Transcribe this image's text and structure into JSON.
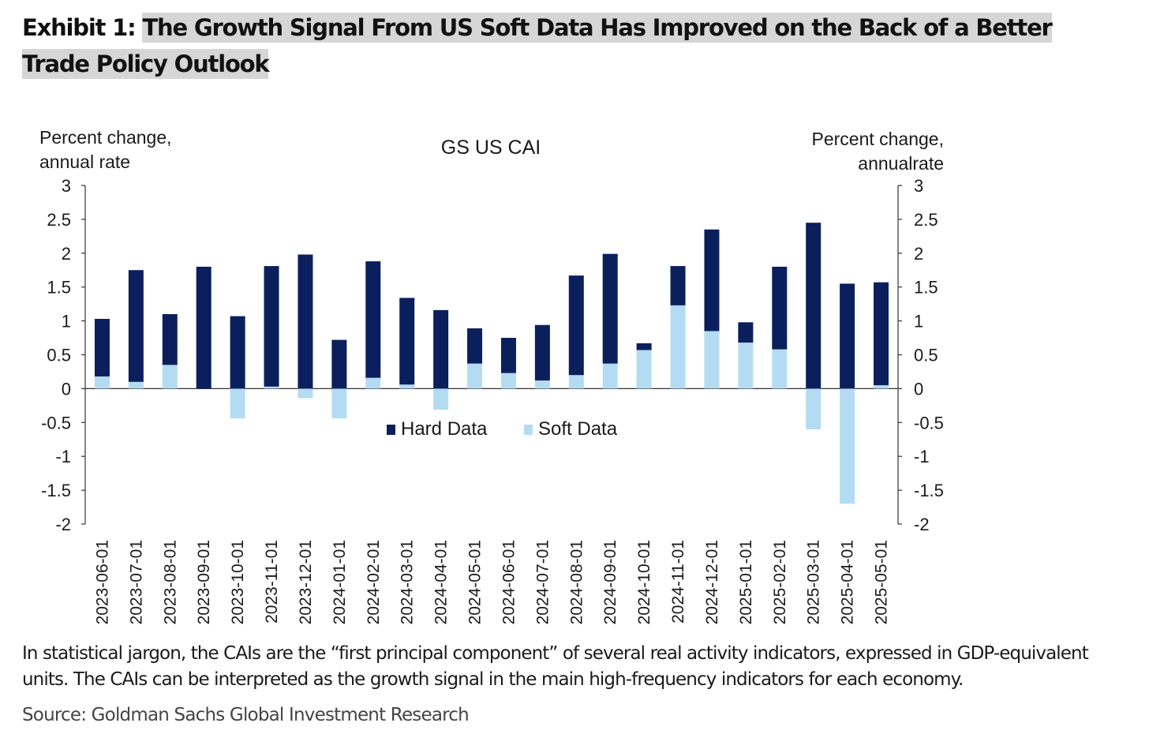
{
  "exhibit": {
    "label": "Exhibit 1:",
    "title": "The Growth Signal From US Soft Data Has Improved on the Back of a Better Trade Policy Outlook"
  },
  "chart_data": {
    "type": "bar",
    "stacked": true,
    "title": "GS US CAI",
    "ylabel_left": "Percent change, annual rate",
    "ylabel_right": "Percent change, annualrate",
    "ylim": [
      -2,
      3
    ],
    "yticks": [
      3,
      2.5,
      2,
      1.5,
      1,
      0.5,
      0,
      -0.5,
      -1,
      -1.5,
      -2
    ],
    "legend_position": "center",
    "categories": [
      "2023-06-01",
      "2023-07-01",
      "2023-08-01",
      "2023-09-01",
      "2023-10-01",
      "2023-11-01",
      "2023-12-01",
      "2024-01-01",
      "2024-02-01",
      "2024-03-01",
      "2024-04-01",
      "2024-05-01",
      "2024-06-01",
      "2024-07-01",
      "2024-08-01",
      "2024-09-01",
      "2024-10-01",
      "2024-11-01",
      "2024-12-01",
      "2025-01-01",
      "2025-02-01",
      "2025-03-01",
      "2025-04-01",
      "2025-05-01"
    ],
    "series": [
      {
        "name": "Hard Data",
        "color": "#0b1f5c",
        "values": [
          0.85,
          1.65,
          0.75,
          1.8,
          1.07,
          1.78,
          1.98,
          0.72,
          1.72,
          1.28,
          1.16,
          0.52,
          0.52,
          0.82,
          1.47,
          1.62,
          0.1,
          0.58,
          1.5,
          0.3,
          1.22,
          2.45,
          1.55,
          1.52
        ]
      },
      {
        "name": "Soft Data",
        "color": "#b3dcf2",
        "values": [
          0.18,
          0.1,
          0.35,
          0,
          -0.44,
          0.03,
          -0.14,
          -0.44,
          0.16,
          0.06,
          -0.31,
          0.37,
          0.23,
          0.12,
          0.2,
          0.37,
          0.57,
          1.23,
          0.85,
          0.68,
          0.58,
          -0.6,
          -1.7,
          0.05
        ]
      }
    ]
  },
  "note": "In statistical jargon, the CAIs are the “first principal component” of several real activity indicators, expressed in GDP-equivalent units. The CAIs can be interpreted as the growth signal in the main high-frequency indicators for each economy.",
  "source": "Source: Goldman Sachs Global Investment Research"
}
